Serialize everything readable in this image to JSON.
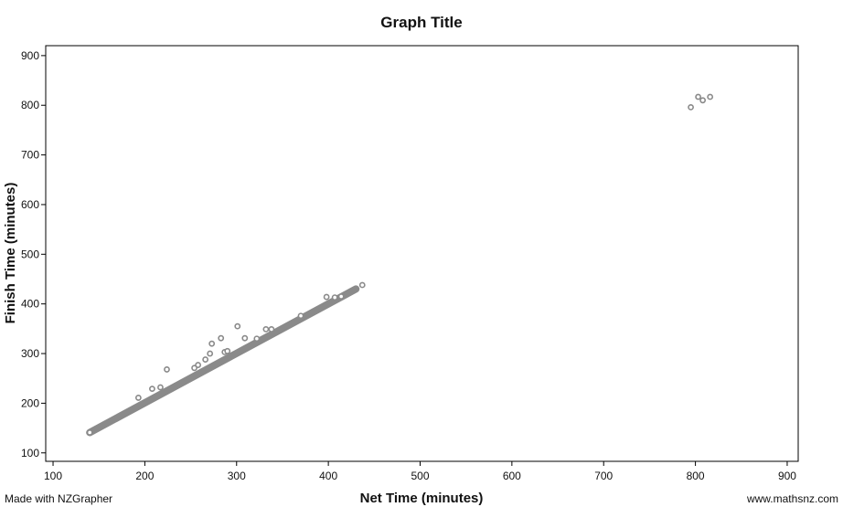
{
  "chart_data": {
    "type": "scatter",
    "title": "Graph Title",
    "xlabel": "Net Time (minutes)",
    "ylabel": "Finish Time (minutes)",
    "xlim": [
      92,
      912
    ],
    "ylim": [
      83,
      920
    ],
    "xticks": [
      100,
      200,
      300,
      400,
      500,
      600,
      700,
      800,
      900
    ],
    "yticks": [
      100,
      200,
      300,
      400,
      500,
      600,
      700,
      800,
      900
    ],
    "grid": false,
    "marker": "open-circle",
    "colors": {
      "points": "#8a8a8a",
      "axes": "#000000",
      "text": "#111111"
    },
    "main_trend": {
      "x_start": 140,
      "x_end": 430,
      "y_start": 141,
      "y_end": 430
    },
    "points": [
      {
        "x": 140,
        "y": 141
      },
      {
        "x": 193,
        "y": 211
      },
      {
        "x": 208,
        "y": 229
      },
      {
        "x": 217,
        "y": 232
      },
      {
        "x": 224,
        "y": 268
      },
      {
        "x": 254,
        "y": 271
      },
      {
        "x": 258,
        "y": 277
      },
      {
        "x": 266,
        "y": 288
      },
      {
        "x": 271,
        "y": 300
      },
      {
        "x": 273,
        "y": 320
      },
      {
        "x": 283,
        "y": 331
      },
      {
        "x": 287,
        "y": 303
      },
      {
        "x": 290,
        "y": 305
      },
      {
        "x": 301,
        "y": 355
      },
      {
        "x": 309,
        "y": 331
      },
      {
        "x": 322,
        "y": 330
      },
      {
        "x": 332,
        "y": 349
      },
      {
        "x": 338,
        "y": 349
      },
      {
        "x": 370,
        "y": 376
      },
      {
        "x": 398,
        "y": 414
      },
      {
        "x": 407,
        "y": 413
      },
      {
        "x": 414,
        "y": 415
      },
      {
        "x": 437,
        "y": 438
      },
      {
        "x": 795,
        "y": 796
      },
      {
        "x": 803,
        "y": 817
      },
      {
        "x": 808,
        "y": 810
      },
      {
        "x": 816,
        "y": 817
      }
    ]
  },
  "footer": {
    "left": "Made with NZGrapher",
    "right": "www.mathsnz.com"
  }
}
